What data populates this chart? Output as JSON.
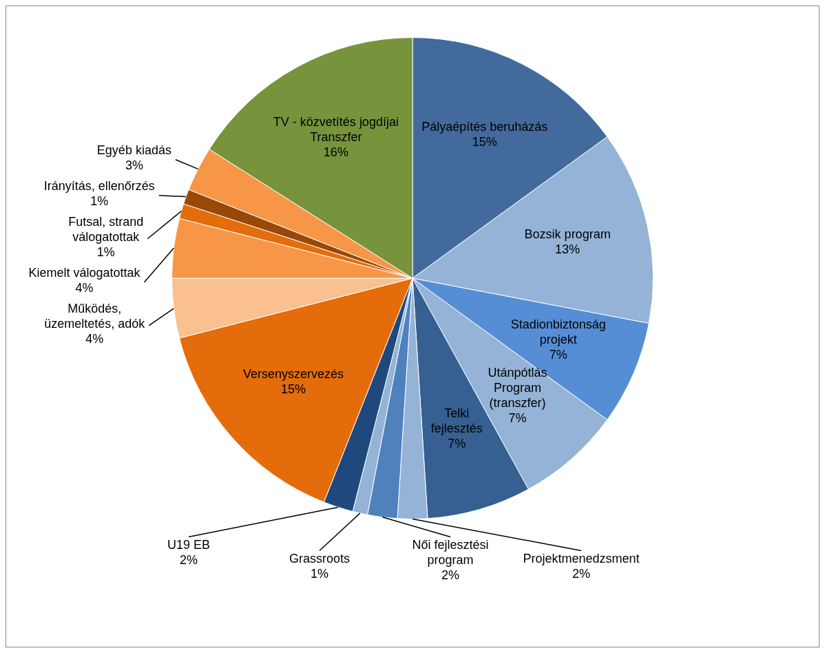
{
  "chart_data": {
    "type": "pie",
    "categories": [
      "Pályaépítés beruházás",
      "Bozsik program",
      "Stadionbiztonság projekt",
      "Utánpótlás Program (transzfer)",
      "Telki fejlesztés",
      "Projektmenedzsment",
      "Női fejlesztési program",
      "Grassroots",
      "U19 EB",
      "Versenyszervezés",
      "Működés, üzemeltetés, adók",
      "Kiemelt válogatottak",
      "Futsal, strand válogatottak",
      "Irányítás, ellenőrzés",
      "Egyéb kiadás",
      "TV - közvetítés jogdíjai Transzfer"
    ],
    "values": [
      15,
      13,
      7,
      7,
      7,
      2,
      2,
      1,
      2,
      15,
      4,
      4,
      1,
      1,
      3,
      16
    ],
    "colors": [
      "#436a9c",
      "#95b3d7",
      "#558ed5",
      "#95b3d7",
      "#366092",
      "#95b3d7",
      "#4f81bd",
      "#95b3d7",
      "#1f497d",
      "#e46c0a",
      "#fac090",
      "#f79646",
      "#e46c0a",
      "#984807",
      "#f79646",
      "#77933c"
    ],
    "value_labels": [
      "15%",
      "13%",
      "7%",
      "7%",
      "7%",
      "2%",
      "2%",
      "1%",
      "2%",
      "15%",
      "4%",
      "4%",
      "1%",
      "1%",
      "3%",
      "16%"
    ],
    "legend": false
  }
}
